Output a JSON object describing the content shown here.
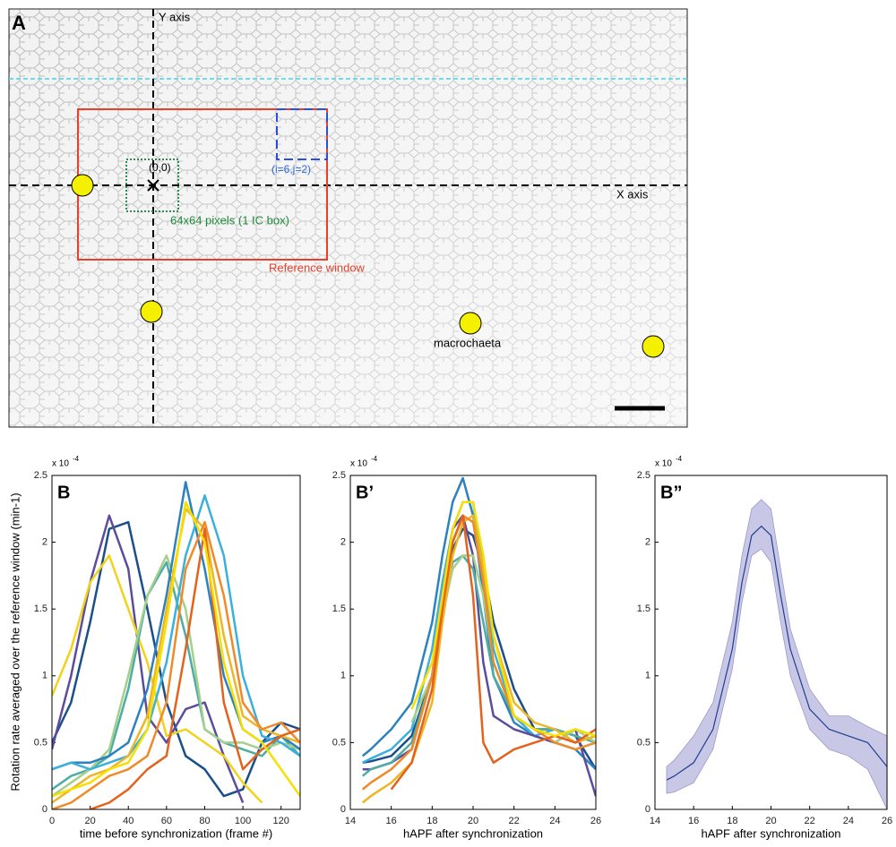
{
  "image_panel": {
    "label": "A",
    "y_axis": "Y axis",
    "x_axis": "X axis",
    "origin": "(0,0)",
    "box_index": "(i=6,j=2)",
    "ic_box": "64x64 pixels (1 IC box)",
    "reference_window": "Reference window",
    "macrochaeta": "macrochaeta"
  },
  "chart_data": [
    {
      "type": "line",
      "panel_label": "B",
      "y_label": "Rotation rate averaged over the reference window (min-1)",
      "y_multiplier": "x 10",
      "y_multiplier_exponent": "-4",
      "x_label": "time before synchronization (frame #)",
      "xlim": [
        0,
        130
      ],
      "xticks": [
        0,
        20,
        40,
        60,
        80,
        100,
        120
      ],
      "ylim": [
        0,
        2.5
      ],
      "yticks": [
        0,
        0.5,
        1,
        1.5,
        2,
        2.5
      ],
      "x": [
        0,
        10,
        20,
        30,
        40,
        50,
        60,
        70,
        80,
        90,
        100,
        110,
        120,
        130
      ],
      "series": [
        {
          "color": "#1b4f8a",
          "values": [
            0.5,
            0.8,
            1.4,
            2.1,
            2.15,
            1.5,
            0.8,
            0.4,
            0.3,
            0.1,
            0.15,
            0.5,
            0.65,
            0.6
          ]
        },
        {
          "color": "#5b4d9b",
          "values": [
            0.45,
            1.0,
            1.7,
            2.2,
            1.8,
            0.7,
            0.5,
            0.75,
            0.8,
            0.4,
            0.05,
            null,
            null,
            null
          ]
        },
        {
          "color": "#f2d21b",
          "values": [
            0.85,
            1.2,
            1.7,
            1.9,
            1.5,
            1.1,
            0.55,
            0.6,
            0.5,
            0.4,
            0.2,
            0.05,
            null,
            null
          ]
        },
        {
          "color": "#4dada5",
          "values": [
            0.15,
            0.25,
            0.3,
            0.4,
            0.9,
            1.6,
            1.85,
            1.3,
            0.6,
            0.5,
            0.45,
            0.4,
            0.55,
            0.4
          ]
        },
        {
          "color": "#a5cf8c",
          "values": [
            0.1,
            0.2,
            0.3,
            0.45,
            1.0,
            1.6,
            1.9,
            1.5,
            0.6,
            0.5,
            0.5,
            0.45,
            0.5,
            0.45
          ]
        },
        {
          "color": "#2c82c0",
          "values": [
            0.3,
            0.35,
            0.35,
            0.4,
            0.5,
            0.9,
            1.6,
            2.45,
            1.8,
            1.0,
            0.6,
            0.5,
            0.55,
            0.45
          ]
        },
        {
          "color": "#3bb0dc",
          "values": [
            0.3,
            0.35,
            0.3,
            0.35,
            0.4,
            0.6,
            1.1,
            1.9,
            2.35,
            1.9,
            1.0,
            0.55,
            0.5,
            0.4
          ]
        },
        {
          "color": "#eeb627",
          "values": [
            0.05,
            0.15,
            0.25,
            0.3,
            0.4,
            0.7,
            1.5,
            2.25,
            2.1,
            1.3,
            0.7,
            0.6,
            0.55,
            0.5
          ]
        },
        {
          "color": "#ef8a28",
          "values": [
            0.0,
            0.05,
            0.15,
            0.25,
            0.3,
            0.4,
            0.8,
            1.8,
            2.15,
            1.6,
            0.8,
            0.6,
            0.65,
            0.5
          ]
        },
        {
          "color": "#e4621b",
          "values": [
            null,
            null,
            0.0,
            0.05,
            0.15,
            0.3,
            0.4,
            1.2,
            2.1,
            0.8,
            0.3,
            0.45,
            0.55,
            0.6
          ]
        },
        {
          "color": "#f7e000",
          "values": [
            0.1,
            0.15,
            0.2,
            0.3,
            0.35,
            0.6,
            1.4,
            2.3,
            2.0,
            1.1,
            0.6,
            0.5,
            0.3,
            0.1
          ]
        }
      ]
    },
    {
      "type": "line",
      "panel_label": "B’",
      "y_multiplier": "x 10",
      "y_multiplier_exponent": "-4",
      "x_label": "hAPF after synchronization",
      "xlim": [
        14,
        26
      ],
      "xticks": [
        14,
        16,
        18,
        20,
        22,
        24,
        26
      ],
      "ylim": [
        0,
        2.5
      ],
      "yticks": [
        0,
        0.5,
        1,
        1.5,
        2,
        2.5
      ],
      "x": [
        14.6,
        15,
        16,
        17,
        18,
        18.5,
        19,
        19.5,
        20,
        20.5,
        21,
        22,
        23,
        24,
        25,
        26
      ],
      "series": [
        {
          "color": "#1b4f8a",
          "values": [
            0.35,
            0.36,
            0.4,
            0.55,
            1.0,
            1.5,
            1.95,
            2.1,
            2.05,
            1.8,
            1.4,
            0.9,
            0.6,
            0.6,
            0.55,
            0.3
          ]
        },
        {
          "color": "#2c82c0",
          "values": [
            0.4,
            0.45,
            0.6,
            0.8,
            1.4,
            1.9,
            2.3,
            2.48,
            2.2,
            1.6,
            1.0,
            0.65,
            0.55,
            0.5,
            0.45,
            0.3
          ]
        },
        {
          "color": "#3bb0dc",
          "values": [
            0.35,
            0.38,
            0.45,
            0.6,
            1.2,
            1.7,
            2.1,
            2.3,
            2.3,
            1.8,
            1.2,
            0.7,
            0.55,
            0.6,
            0.5,
            0.55
          ]
        },
        {
          "color": "#5b4d9b",
          "values": [
            0.3,
            0.3,
            0.35,
            0.45,
            1.0,
            1.6,
            2.1,
            2.2,
            1.9,
            1.1,
            0.7,
            0.6,
            0.55,
            0.5,
            0.6,
            0.1
          ]
        },
        {
          "color": "#4dada5",
          "values": [
            0.25,
            0.3,
            0.35,
            0.5,
            1.0,
            1.5,
            1.85,
            1.9,
            1.8,
            1.4,
            1.0,
            0.7,
            0.6,
            0.6,
            0.55,
            0.5
          ]
        },
        {
          "color": "#a5cf8c",
          "values": [
            null,
            null,
            null,
            0.65,
            1.0,
            1.45,
            1.8,
            1.9,
            1.9,
            1.6,
            1.1,
            0.7,
            0.6,
            0.5,
            0.6,
            0.5
          ]
        },
        {
          "color": "#eeb627",
          "values": [
            0.05,
            0.1,
            0.2,
            0.35,
            0.8,
            1.4,
            1.9,
            2.15,
            2.2,
            1.8,
            1.3,
            0.8,
            0.65,
            0.6,
            0.5,
            0.55
          ]
        },
        {
          "color": "#ef8a28",
          "values": [
            0.15,
            0.2,
            0.3,
            0.45,
            1.0,
            1.55,
            2.0,
            2.2,
            2.15,
            1.7,
            1.1,
            0.7,
            0.6,
            0.5,
            0.45,
            0.5
          ]
        },
        {
          "color": "#e4621b",
          "values": [
            null,
            null,
            0.15,
            0.35,
            0.9,
            1.5,
            2.0,
            2.2,
            1.6,
            0.5,
            0.35,
            0.45,
            0.5,
            0.55,
            0.5,
            0.6
          ]
        },
        {
          "color": "#f7e000",
          "values": [
            null,
            null,
            null,
            0.75,
            1.1,
            1.6,
            2.1,
            2.3,
            2.3,
            1.9,
            1.3,
            0.7,
            0.6,
            0.55,
            0.6,
            0.55
          ]
        }
      ]
    },
    {
      "type": "band",
      "panel_label": "B”",
      "y_multiplier": "x 10",
      "y_multiplier_exponent": "-4",
      "x_label": "hAPF after synchronization",
      "xlim": [
        14,
        26
      ],
      "xticks": [
        14,
        16,
        18,
        20,
        22,
        24,
        26
      ],
      "ylim": [
        0,
        2.5
      ],
      "yticks": [
        0,
        0.5,
        1,
        1.5,
        2,
        2.5
      ],
      "x": [
        14.6,
        15,
        16,
        17,
        18,
        18.5,
        19,
        19.5,
        20,
        20.5,
        21,
        22,
        23,
        24,
        25,
        26
      ],
      "series": [
        {
          "color": "#1f3f8f",
          "band_color": "#c9c7e6",
          "values": [
            0.22,
            0.25,
            0.35,
            0.6,
            1.2,
            1.7,
            2.05,
            2.12,
            2.05,
            1.6,
            1.2,
            0.75,
            0.6,
            0.55,
            0.5,
            0.32
          ],
          "lower": [
            0.12,
            0.13,
            0.2,
            0.45,
            1.05,
            1.55,
            1.9,
            1.95,
            1.85,
            1.4,
            1.0,
            0.6,
            0.45,
            0.4,
            0.3,
            0.0
          ],
          "upper": [
            0.32,
            0.37,
            0.55,
            0.8,
            1.4,
            1.9,
            2.25,
            2.32,
            2.25,
            1.8,
            1.35,
            0.9,
            0.7,
            0.7,
            0.62,
            0.55
          ]
        }
      ]
    }
  ]
}
